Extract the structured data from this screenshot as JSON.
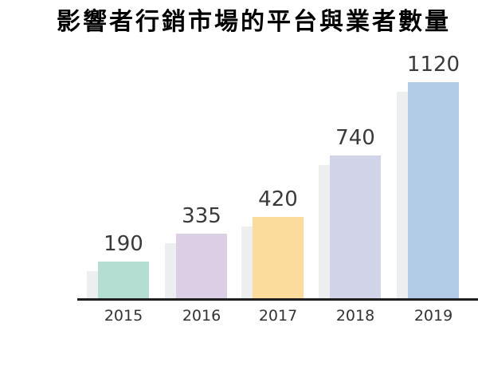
{
  "chart_data": {
    "type": "bar",
    "title": "影響者行銷市場的平台與業者數量",
    "categories": [
      "2015",
      "2016",
      "2017",
      "2018",
      "2019"
    ],
    "values": [
      190,
      335,
      420,
      740,
      1120
    ],
    "xlabel": "",
    "ylabel": "",
    "ylim": [
      0,
      1200
    ],
    "grid": false,
    "legend": "none",
    "value_labels_shown": true,
    "colors": {
      "bars": [
        "#b5ded2",
        "#dacfe4",
        "#fcdc9d",
        "#d1d3e8",
        "#b2cbe7"
      ],
      "shadow": "#eceef0",
      "axis": "#202020",
      "title_text": "#000000",
      "value_label_text": "#3a3a3a",
      "tick_label_text": "#333333",
      "background": "#ffffff"
    }
  }
}
